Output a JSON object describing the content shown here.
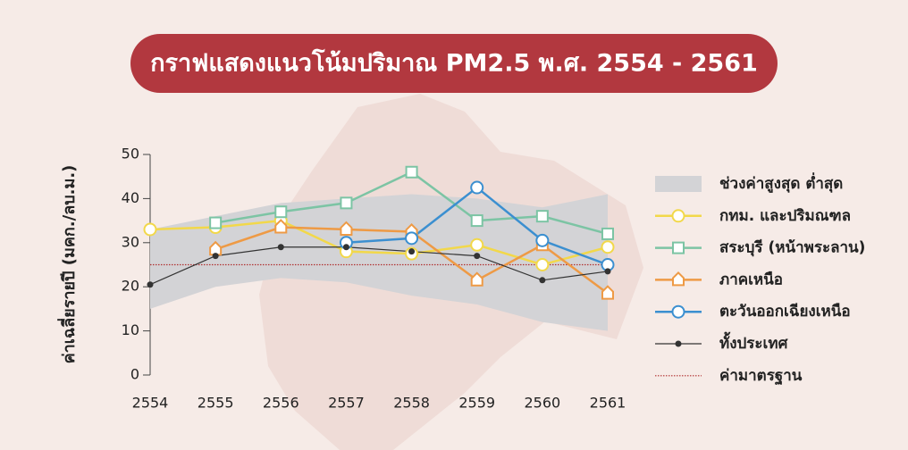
{
  "chart_data": {
    "type": "line",
    "title": "กราฟแสดงแนวโน้มปริมาณ PM2.5 พ.ศ. 2554 - 2561",
    "y_label": "ค่าเฉลี่ยรายปี (มคก./ลบ.ม.)",
    "categories": [
      "2554",
      "2555",
      "2556",
      "2557",
      "2558",
      "2559",
      "2560",
      "2561"
    ],
    "ylim": [
      0,
      50
    ],
    "yticks": [
      0,
      10,
      20,
      30,
      40,
      50
    ],
    "range": {
      "name": "ช่วงค่าสูงสุด ต่ำสุด",
      "color": "#d3d3d6",
      "upper": [
        33,
        36,
        39,
        40,
        41,
        40,
        38,
        41
      ],
      "lower": [
        15,
        20,
        22,
        21,
        18,
        16,
        12,
        10
      ]
    },
    "series": [
      {
        "name": "กทม. และปริมณฑล",
        "color": "#f2d84a",
        "marker": "circle",
        "values": [
          33,
          33.5,
          35,
          28,
          27.5,
          29.5,
          25,
          29
        ]
      },
      {
        "name": "สระบุรี (หน้าพระลาน)",
        "color": "#7cc4a4",
        "marker": "square",
        "values": [
          null,
          34.5,
          37,
          39,
          46,
          35,
          36,
          32
        ]
      },
      {
        "name": "ภาคเหนือ",
        "color": "#ee9a45",
        "marker": "house",
        "values": [
          null,
          28.5,
          33.5,
          33,
          32.5,
          21.5,
          29.5,
          18.5
        ]
      },
      {
        "name": "ตะวันออกเฉียงเหนือ",
        "color": "#3b8fd0",
        "marker": "circle",
        "values": [
          null,
          null,
          null,
          30,
          31,
          42.5,
          30.5,
          25
        ]
      },
      {
        "name": "ทั้งประเทศ",
        "color": "#333333",
        "marker": "dot",
        "values": [
          20.5,
          27,
          29,
          29,
          28,
          27,
          21.5,
          23.5
        ]
      }
    ],
    "standard": {
      "name": "ค่ามาตรฐาน",
      "color": "#b03030",
      "value": 25
    }
  }
}
